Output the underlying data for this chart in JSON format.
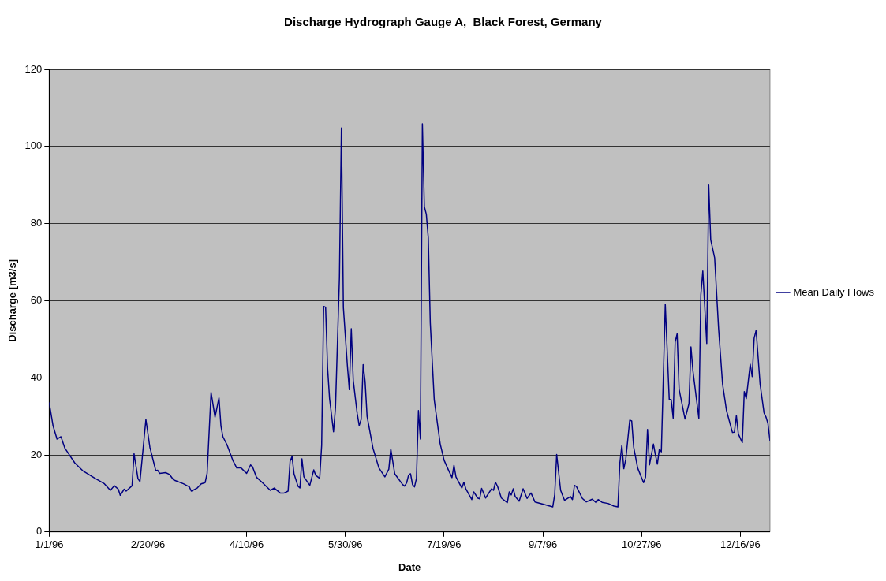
{
  "chart_data": {
    "type": "line",
    "title": "Discharge Hydrograph Gauge A,  Black Forest, Germany",
    "xlabel": "Date",
    "ylabel": "Discharge [m3/s]",
    "series": [
      {
        "name": "Mean Daily Flows",
        "color": "#000080",
        "x": [
          "1996-01-01",
          "1996-01-03",
          "1996-01-05",
          "1996-01-07",
          "1996-01-09",
          "1996-01-14",
          "1996-01-18",
          "1996-01-24",
          "1996-01-29",
          "1996-02-01",
          "1996-02-03",
          "1996-02-05",
          "1996-02-06",
          "1996-02-08",
          "1996-02-09",
          "1996-02-12",
          "1996-02-13",
          "1996-02-15",
          "1996-02-16",
          "1996-02-19",
          "1996-02-21",
          "1996-02-24",
          "1996-02-25",
          "1996-02-26",
          "1996-02-29",
          "1996-03-02",
          "1996-03-04",
          "1996-03-09",
          "1996-03-12",
          "1996-03-13",
          "1996-03-16",
          "1996-03-18",
          "1996-03-20",
          "1996-03-21",
          "1996-03-23",
          "1996-03-25",
          "1996-03-27",
          "1996-03-28",
          "1996-03-29",
          "1996-03-31",
          "1996-04-03",
          "1996-04-05",
          "1996-04-07",
          "1996-04-10",
          "1996-04-12",
          "1996-04-13",
          "1996-04-15",
          "1996-04-18",
          "1996-04-22",
          "1996-04-24",
          "1996-04-27",
          "1996-04-29",
          "1996-05-01",
          "1996-05-02",
          "1996-05-03",
          "1996-05-04",
          "1996-05-06",
          "1996-05-07",
          "1996-05-08",
          "1996-05-09",
          "1996-05-12",
          "1996-05-14",
          "1996-05-15",
          "1996-05-17",
          "1996-05-18",
          "1996-05-19",
          "1996-05-20",
          "1996-05-21",
          "1996-05-22",
          "1996-05-24",
          "1996-05-25",
          "1996-05-27",
          "1996-05-28",
          "1996-05-29",
          "1996-05-31",
          "1996-06-01",
          "1996-06-02",
          "1996-06-03",
          "1996-06-05",
          "1996-06-06",
          "1996-06-07",
          "1996-06-08",
          "1996-06-09",
          "1996-06-10",
          "1996-06-13",
          "1996-06-16",
          "1996-06-19",
          "1996-06-21",
          "1996-06-22",
          "1996-06-24",
          "1996-06-28",
          "1996-06-29",
          "1996-06-30",
          "1996-07-01",
          "1996-07-02",
          "1996-07-03",
          "1996-07-04",
          "1996-07-05",
          "1996-07-06",
          "1996-07-07",
          "1996-07-08",
          "1996-07-09",
          "1996-07-10",
          "1996-07-11",
          "1996-07-12",
          "1996-07-14",
          "1996-07-17",
          "1996-07-19",
          "1996-07-21",
          "1996-07-23",
          "1996-07-24",
          "1996-07-25",
          "1996-07-28",
          "1996-07-29",
          "1996-07-30",
          "1996-08-02",
          "1996-08-03",
          "1996-08-05",
          "1996-08-06",
          "1996-08-07",
          "1996-08-09",
          "1996-08-12",
          "1996-08-13",
          "1996-08-14",
          "1996-08-15",
          "1996-08-17",
          "1996-08-20",
          "1996-08-21",
          "1996-08-22",
          "1996-08-23",
          "1996-08-24",
          "1996-08-26",
          "1996-08-28",
          "1996-08-30",
          "1996-09-01",
          "1996-09-03",
          "1996-09-07",
          "1996-09-12",
          "1996-09-13",
          "1996-09-14",
          "1996-09-16",
          "1996-09-18",
          "1996-09-21",
          "1996-09-22",
          "1996-09-23",
          "1996-09-24",
          "1996-09-27",
          "1996-09-29",
          "1996-10-02",
          "1996-10-04",
          "1996-10-05",
          "1996-10-07",
          "1996-10-10",
          "1996-10-13",
          "1996-10-15",
          "1996-10-16",
          "1996-10-17",
          "1996-10-18",
          "1996-10-19",
          "1996-10-21",
          "1996-10-22",
          "1996-10-23",
          "1996-10-25",
          "1996-10-28",
          "1996-10-29",
          "1996-10-30",
          "1996-10-31",
          "1996-11-02",
          "1996-11-03",
          "1996-11-04",
          "1996-11-05",
          "1996-11-06",
          "1996-11-08",
          "1996-11-10",
          "1996-11-11",
          "1996-11-12",
          "1996-11-13",
          "1996-11-14",
          "1996-11-15",
          "1996-11-18",
          "1996-11-20",
          "1996-11-21",
          "1996-11-22",
          "1996-11-25",
          "1996-11-26",
          "1996-11-27",
          "1996-11-29",
          "1996-11-30",
          "1996-12-01",
          "1996-12-03",
          "1996-12-05",
          "1996-12-07",
          "1996-12-09",
          "1996-12-12",
          "1996-12-13",
          "1996-12-14",
          "1996-12-15",
          "1996-12-17",
          "1996-12-18",
          "1996-12-19",
          "1996-12-21",
          "1996-12-22",
          "1996-12-23",
          "1996-12-24",
          "1996-12-26",
          "1996-12-28",
          "1996-12-29",
          "1996-12-30",
          "1996-12-31"
        ],
        "values": [
          33.6,
          27.5,
          24.1,
          24.7,
          21.7,
          17.9,
          15.9,
          14.0,
          12.5,
          10.8,
          12.0,
          11.1,
          9.5,
          11.1,
          10.6,
          12.0,
          20.3,
          13.8,
          13.1,
          29.2,
          22.0,
          15.9,
          16.0,
          15.2,
          15.4,
          14.9,
          13.5,
          12.5,
          11.7,
          10.6,
          11.4,
          12.5,
          12.8,
          15.2,
          36.2,
          29.8,
          34.8,
          27.5,
          24.7,
          22.7,
          18.6,
          16.6,
          16.7,
          15.2,
          17.4,
          16.9,
          14.2,
          12.8,
          10.8,
          11.4,
          10.1,
          10.1,
          10.6,
          18.3,
          19.6,
          15.1,
          11.9,
          11.4,
          19.0,
          14.3,
          12.1,
          16.1,
          14.7,
          13.9,
          22.5,
          58.5,
          58.3,
          42.5,
          34.6,
          26.0,
          32.3,
          66.0,
          104.8,
          58.2,
          43.3,
          36.9,
          52.7,
          39.3,
          30.7,
          27.6,
          29.2,
          43.4,
          39.0,
          30.0,
          21.7,
          16.6,
          14.3,
          16.3,
          21.5,
          15.1,
          12.3,
          11.9,
          12.7,
          14.7,
          15.1,
          12.3,
          11.7,
          13.9,
          31.5,
          24.1,
          105.9,
          84.4,
          82.4,
          76.2,
          54.2,
          34.3,
          22.9,
          18.6,
          16.3,
          14.1,
          17.3,
          14.3,
          11.4,
          12.9,
          11.2,
          8.4,
          10.4,
          8.8,
          8.6,
          11.3,
          8.8,
          11.2,
          10.8,
          12.9,
          11.9,
          8.8,
          7.6,
          10.4,
          9.6,
          11.2,
          9.2,
          8.0,
          11.2,
          8.7,
          10.1,
          7.8,
          7.2,
          6.5,
          9.7,
          20.1,
          10.8,
          8.2,
          9.2,
          8.4,
          12.1,
          11.8,
          8.7,
          7.8,
          8.5,
          7.6,
          8.4,
          7.7,
          7.4,
          6.7,
          6.5,
          17.9,
          22.5,
          16.4,
          18.9,
          29.0,
          28.8,
          22.0,
          16.6,
          12.8,
          14.2,
          26.6,
          17.4,
          22.8,
          20.0,
          17.6,
          21.5,
          20.8,
          59.1,
          34.4,
          34.3,
          29.5,
          49.3,
          51.4,
          37.0,
          29.3,
          33.3,
          48.0,
          41.8,
          29.5,
          61.5,
          67.7,
          48.9,
          90.0,
          75.8,
          71.1,
          52.7,
          38.4,
          31.5,
          25.8,
          25.9,
          30.2,
          25.4,
          23.2,
          36.4,
          34.6,
          43.5,
          40.3,
          50.3,
          52.3,
          38.4,
          30.9,
          29.8,
          28.1,
          23.7
        ]
      }
    ],
    "xlim": [
      "1996-01-01",
      "1996-12-31"
    ],
    "xticks": [
      {
        "value": "1996-01-01",
        "label": "1/1/96"
      },
      {
        "value": "1996-02-20",
        "label": "2/20/96"
      },
      {
        "value": "1996-04-10",
        "label": "4/10/96"
      },
      {
        "value": "1996-05-30",
        "label": "5/30/96"
      },
      {
        "value": "1996-07-19",
        "label": "7/19/96"
      },
      {
        "value": "1996-09-07",
        "label": "9/7/96"
      },
      {
        "value": "1996-10-27",
        "label": "10/27/96"
      },
      {
        "value": "1996-12-16",
        "label": "12/16/96"
      }
    ],
    "ylim": [
      0,
      120
    ],
    "yticks": [
      0,
      20,
      40,
      60,
      80,
      100,
      120
    ],
    "grid": "y",
    "legend": "right",
    "marker": "none",
    "line_style": "solid"
  }
}
